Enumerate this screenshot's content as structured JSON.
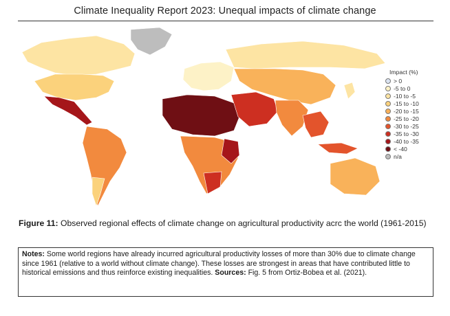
{
  "header": {
    "title": "Climate Inequality Report 2023: Unequal impacts of climate change"
  },
  "legend": {
    "title": "Impact (%)",
    "items": [
      {
        "label": "> 0",
        "color": "#dbe4f2"
      },
      {
        "label": "-5 to 0",
        "color": "#fdf2c7"
      },
      {
        "label": "-10 to -5",
        "color": "#fde4a3"
      },
      {
        "label": "-15 to -10",
        "color": "#fbd27c"
      },
      {
        "label": "-20 to -15",
        "color": "#f9b25a"
      },
      {
        "label": "-25 to -20",
        "color": "#f28a3e"
      },
      {
        "label": "-30 to -25",
        "color": "#e3542c"
      },
      {
        "label": "-35 to -30",
        "color": "#cd2f21"
      },
      {
        "label": "-40 to -35",
        "color": "#a5161a"
      },
      {
        "label": "< -40",
        "color": "#6f0f14"
      },
      {
        "label": "n/a",
        "color": "#bdbdbd"
      }
    ]
  },
  "caption": {
    "label": "Figure 11:",
    "text": " Observed regional effects of climate change on agricultural productivity acrc the world (1961-2015)"
  },
  "notes": {
    "label": "Notes:",
    "text": " Some world regions have already incurred agricultural productivity losses of more than 30% due to climate change since 1961 (relative to a world without climate change). These losses are strongest in areas that have contributed little to historical emissions and thus reinforce existing inequalities. ",
    "sources_label": "Sources:",
    "sources_text": " Fig. 5 from Ortiz-Bobea et al. (2021)."
  }
}
